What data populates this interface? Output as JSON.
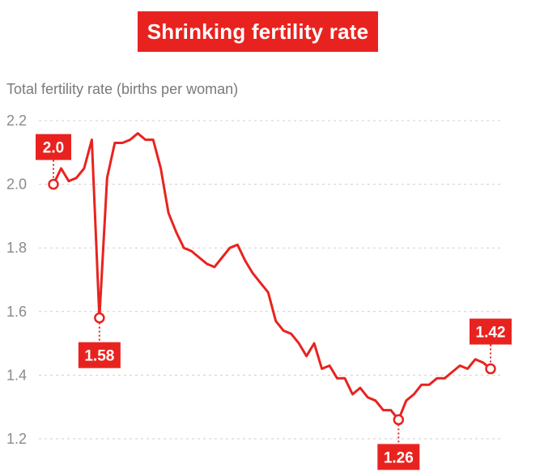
{
  "chart_data": {
    "type": "line",
    "title": "Shrinking fertility rate",
    "ylabel": "Total fertility rate (births per woman)",
    "xlabel": "",
    "ylim": [
      1.2,
      2.2
    ],
    "yticks": [
      {
        "value": 2.2,
        "label": "2.2"
      },
      {
        "value": 2.0,
        "label": "2.0"
      },
      {
        "value": 1.8,
        "label": "1.8"
      },
      {
        "value": 1.6,
        "label": "1.6"
      },
      {
        "value": 1.4,
        "label": "1.4"
      },
      {
        "value": 1.2,
        "label": "1.2"
      }
    ],
    "grid": true,
    "series": [
      {
        "name": "Total fertility rate",
        "color": "#e8231f",
        "values": [
          2.0,
          2.05,
          2.01,
          2.02,
          2.05,
          2.14,
          1.58,
          2.02,
          2.13,
          2.13,
          2.14,
          2.16,
          2.14,
          2.14,
          2.05,
          1.91,
          1.85,
          1.8,
          1.79,
          1.77,
          1.75,
          1.74,
          1.77,
          1.8,
          1.81,
          1.76,
          1.72,
          1.69,
          1.66,
          1.57,
          1.54,
          1.53,
          1.5,
          1.46,
          1.5,
          1.42,
          1.43,
          1.39,
          1.39,
          1.34,
          1.36,
          1.33,
          1.32,
          1.29,
          1.29,
          1.26,
          1.32,
          1.34,
          1.37,
          1.37,
          1.39,
          1.39,
          1.41,
          1.43,
          1.42,
          1.45,
          1.44,
          1.42
        ]
      }
    ],
    "annotations": [
      {
        "index": 0,
        "label": "2.0",
        "position": "above"
      },
      {
        "index": 6,
        "label": "1.58",
        "position": "below"
      },
      {
        "index": 45,
        "label": "1.26",
        "position": "below"
      },
      {
        "index": 57,
        "label": "1.42",
        "position": "above"
      }
    ]
  }
}
